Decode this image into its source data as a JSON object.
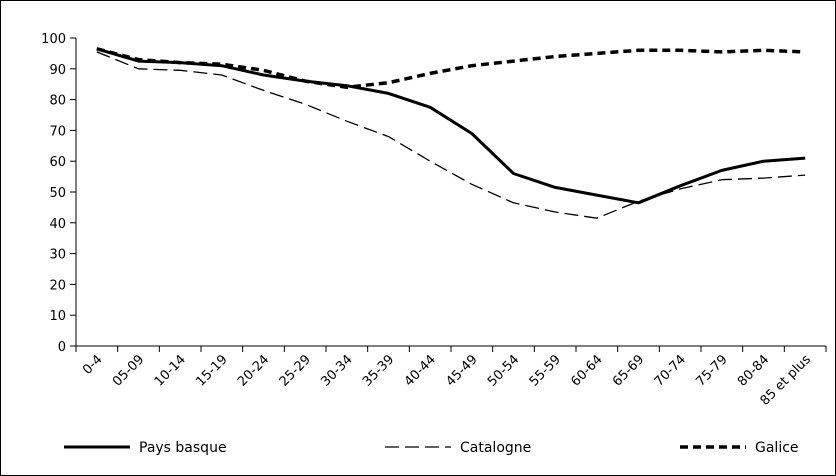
{
  "chart_data": {
    "type": "line",
    "title": "",
    "xlabel": "",
    "ylabel": "",
    "ylim": [
      0,
      100
    ],
    "yticks": [
      0,
      10,
      20,
      30,
      40,
      50,
      60,
      70,
      80,
      90,
      100
    ],
    "categories": [
      "0-4",
      "05-09",
      "10-14",
      "15-19",
      "20-24",
      "25-29",
      "30-34",
      "35-39",
      "40-44",
      "45-49",
      "50-54",
      "55-59",
      "60-64",
      "65-69",
      "70-74",
      "75-79",
      "80-84",
      "85 et plus"
    ],
    "series": [
      {
        "name": "Pays basque",
        "style": "solid",
        "color": "#000000",
        "values": [
          96.5,
          92.5,
          92,
          91,
          88,
          86,
          84.5,
          82,
          77.5,
          69,
          56,
          51.5,
          49,
          46.5,
          52,
          57,
          60,
          61
        ]
      },
      {
        "name": "Catalogne",
        "style": "long-dash",
        "color": "#000000",
        "values": [
          95.5,
          90,
          89.5,
          88,
          83,
          78.5,
          73,
          68,
          60,
          52.5,
          46.5,
          43.5,
          41.5,
          47,
          51,
          54,
          54.5,
          55.5
        ]
      },
      {
        "name": "Galice",
        "style": "dashed",
        "color": "#000000",
        "values": [
          96.5,
          93,
          92,
          91.5,
          89.5,
          86,
          84,
          85.5,
          88.5,
          91,
          92.5,
          94,
          95,
          96,
          96,
          95.5,
          96,
          95.5
        ]
      }
    ],
    "grid": false,
    "legend_position": "bottom"
  }
}
